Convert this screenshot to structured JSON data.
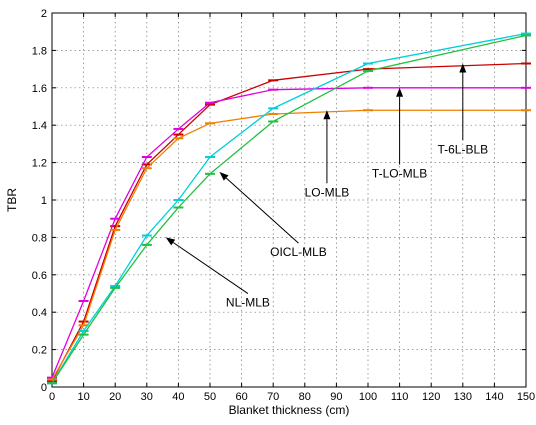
{
  "chart_data": {
    "type": "line",
    "xlabel": "Blanket thickness (cm)",
    "ylabel": "TBR",
    "xlim": [
      0,
      150
    ],
    "ylim": [
      0,
      2
    ],
    "grid": true,
    "xticks": [
      "0",
      "10",
      "20",
      "30",
      "40",
      "50",
      "60",
      "70",
      "80",
      "90",
      "100",
      "110",
      "120",
      "130",
      "140",
      "150"
    ],
    "yticks": [
      "0",
      "0.2",
      "0.4",
      "0.6",
      "0.8",
      "1",
      "1.2",
      "1.4",
      "1.6",
      "1.8",
      "2"
    ],
    "series": [
      {
        "name": "T-6L-BLB",
        "color": "#cc0000",
        "x": [
          0,
          10,
          20,
          30,
          40,
          50,
          70,
          100,
          150
        ],
        "y": [
          0.03,
          0.35,
          0.86,
          1.19,
          1.35,
          1.51,
          1.64,
          1.7,
          1.73
        ]
      },
      {
        "name": "T-LO-MLB",
        "color": "#e000e0",
        "x": [
          0,
          10,
          20,
          30,
          40,
          50,
          70,
          100,
          150
        ],
        "y": [
          0.05,
          0.46,
          0.9,
          1.23,
          1.38,
          1.52,
          1.59,
          1.6,
          1.6
        ]
      },
      {
        "name": "LO-MLB",
        "color": "#f08000",
        "x": [
          0,
          10,
          20,
          30,
          40,
          50,
          70,
          100,
          150
        ],
        "y": [
          0.04,
          0.33,
          0.84,
          1.17,
          1.33,
          1.41,
          1.46,
          1.48,
          1.48
        ]
      },
      {
        "name": "OICL-MLB",
        "color": "#00d0d8",
        "x": [
          0,
          10,
          20,
          30,
          40,
          50,
          70,
          100,
          150
        ],
        "y": [
          0.02,
          0.3,
          0.54,
          0.81,
          1.0,
          1.23,
          1.49,
          1.73,
          1.89
        ]
      },
      {
        "name": "NL-MLB",
        "color": "#20c040",
        "x": [
          0,
          10,
          20,
          30,
          40,
          50,
          70,
          100,
          150
        ],
        "y": [
          0.02,
          0.28,
          0.53,
          0.76,
          0.96,
          1.14,
          1.42,
          1.69,
          1.88
        ]
      }
    ],
    "annotations": [
      {
        "text": "T-6L-BLB",
        "x": 130,
        "y": 1.25,
        "arrow_to": [
          130,
          1.73
        ]
      },
      {
        "text": "T-LO-MLB",
        "x": 110,
        "y": 1.12,
        "arrow_to": [
          110,
          1.6
        ]
      },
      {
        "text": "LO-MLB",
        "x": 87,
        "y": 1.02,
        "arrow_to": [
          87,
          1.48
        ]
      },
      {
        "text": "OICL-MLB",
        "x": 78,
        "y": 0.7,
        "arrow_to": [
          53,
          1.15
        ]
      },
      {
        "text": "NL-MLB",
        "x": 62,
        "y": 0.43,
        "arrow_to": [
          36,
          0.8
        ]
      }
    ]
  }
}
